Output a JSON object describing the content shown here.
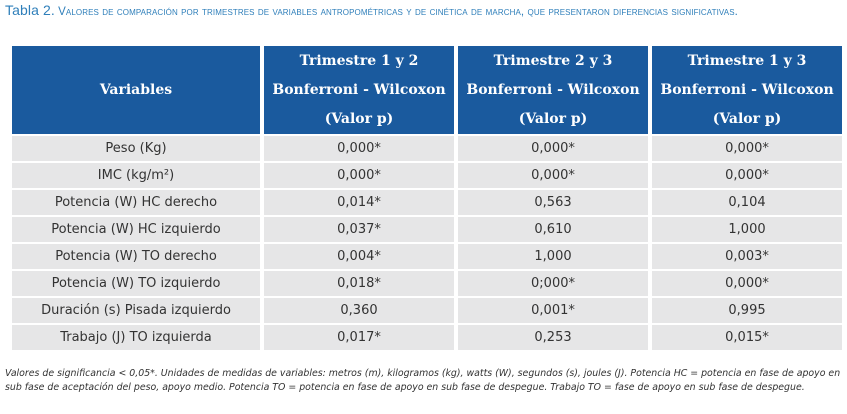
{
  "caption": {
    "label": "Tabla 2.",
    "text": "Valores de comparación por trimestres de variables antropométricas y de cinética de marcha, que presentaron diferencias significativas."
  },
  "table": {
    "header": {
      "variables": "Variables",
      "col1": [
        "Trimestre 1 y 2",
        "Bonferroni - Wilcoxon",
        "(Valor p)"
      ],
      "col2": [
        "Trimestre 2 y 3",
        "Bonferroni - Wilcoxon",
        "(Valor p)"
      ],
      "col3": [
        "Trimestre 1 y 3",
        "Bonferroni - Wilcoxon",
        "(Valor p)"
      ]
    },
    "rows": [
      {
        "variable": "Peso (Kg)",
        "v1": "0,000*",
        "v2": "0,000*",
        "v3": "0,000*"
      },
      {
        "variable": "IMC (kg/m²)",
        "v1": "0,000*",
        "v2": "0,000*",
        "v3": "0,000*"
      },
      {
        "variable": "Potencia (W) HC derecho",
        "v1": "0,014*",
        "v2": "0,563",
        "v3": "0,104"
      },
      {
        "variable": "Potencia (W) HC izquierdo",
        "v1": "0,037*",
        "v2": "0,610",
        "v3": "1,000"
      },
      {
        "variable": "Potencia (W) TO derecho",
        "v1": "0,004*",
        "v2": "1,000",
        "v3": "0,003*"
      },
      {
        "variable": "Potencia (W) TO izquierdo",
        "v1": "0,018*",
        "v2": "0;000*",
        "v3": "0,000*"
      },
      {
        "variable": "Duración (s) Pisada izquierdo",
        "v1": "0,360",
        "v2": "0,001*",
        "v3": "0,995"
      },
      {
        "variable": "Trabajo (J) TO izquierda",
        "v1": "0,017*",
        "v2": "0,253",
        "v3": "0,015*"
      }
    ]
  },
  "note": "Valores de significancia < 0,05*. Unidades de medidas de variables: metros (m), kilogramos (kg), watts (W), segundos (s), joules (J). Potencia HC = potencia en fase de apoyo en sub fase de aceptación del peso, apoyo medio. Potencia TO = potencia en fase de apoyo en sub fase de despegue. Trabajo TO = fase de apoyo en sub fase de despegue.",
  "colors": {
    "caption": "#2f7fba",
    "header_bg": "#1a5a9e",
    "header_text": "#ffffff",
    "cell_bg": "#e6e6e7",
    "body_text": "#333333"
  }
}
